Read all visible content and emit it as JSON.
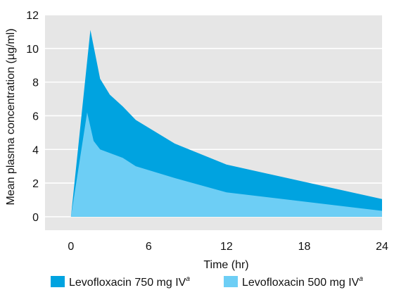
{
  "chart_data": {
    "type": "area",
    "title": "",
    "xlabel": "Time (hr)",
    "ylabel": "Mean plasma concentration (µg/ml)",
    "xlim": [
      -2,
      24
    ],
    "ylim": [
      -0.8,
      12
    ],
    "xticks": [
      0,
      6,
      12,
      18,
      24
    ],
    "yticks": [
      0,
      2,
      4,
      6,
      8,
      10,
      12
    ],
    "grid": "horizontal",
    "background": "#e6e6e6",
    "legend_position": "bottom",
    "series": [
      {
        "name": "Levofloxacin 750 mg IV",
        "superscript": "a",
        "color": "#00a3e0",
        "x": [
          0,
          1.5,
          2.25,
          3,
          4,
          5,
          8,
          12,
          24
        ],
        "y": [
          0,
          11.1,
          8.2,
          7.25,
          6.55,
          5.75,
          4.35,
          3.1,
          1.05
        ]
      },
      {
        "name": "Levofloxacin 500 mg IV",
        "superscript": "a",
        "color": "#6dcef5",
        "x": [
          0,
          1.25,
          1.75,
          2.25,
          4,
          5,
          8,
          12,
          24
        ],
        "y": [
          0,
          6.2,
          4.5,
          4.0,
          3.5,
          3.0,
          2.3,
          1.45,
          0.35
        ]
      }
    ]
  }
}
